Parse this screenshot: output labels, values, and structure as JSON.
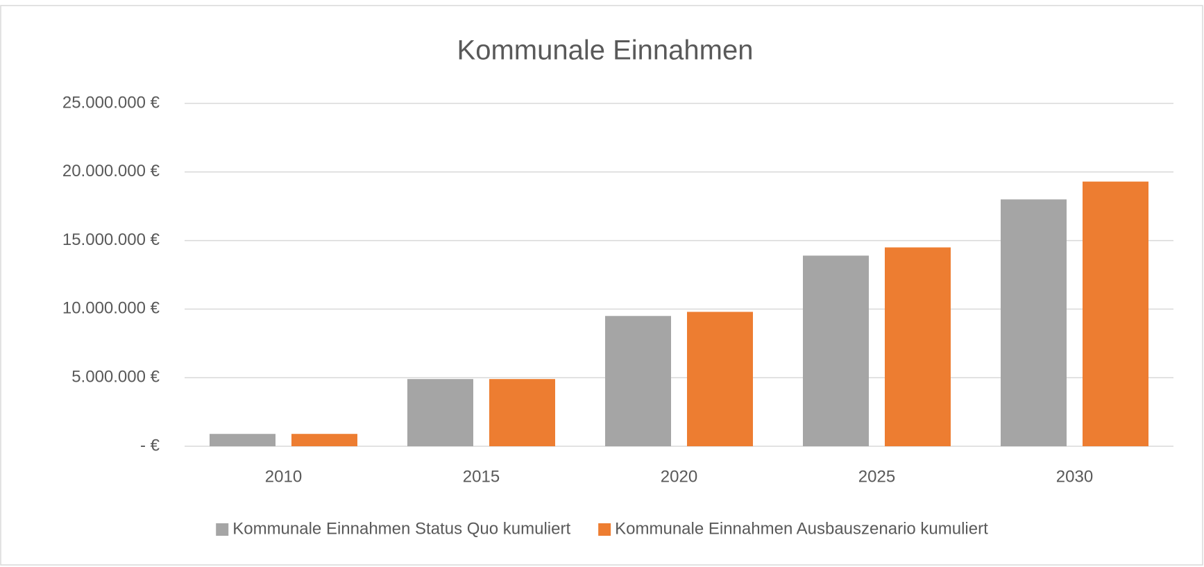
{
  "chart_data": {
    "type": "bar",
    "title": "Kommunale Einnahmen",
    "categories": [
      "2010",
      "2015",
      "2020",
      "2025",
      "2030"
    ],
    "series": [
      {
        "name": "Kommunale Einnahmen Status Quo kumuliert",
        "color": "#a5a5a5",
        "values": [
          900000,
          4900000,
          9500000,
          13900000,
          18000000
        ]
      },
      {
        "name": "Kommunale Einnahmen Ausbauszenario kumuliert",
        "color": "#ed7d31",
        "values": [
          900000,
          4900000,
          9800000,
          14500000,
          19300000
        ]
      }
    ],
    "ylim": [
      0,
      25000000
    ],
    "yticks": [
      {
        "value": 0,
        "label": "-   €"
      },
      {
        "value": 5000000,
        "label": "5.000.000 €"
      },
      {
        "value": 10000000,
        "label": "10.000.000 €"
      },
      {
        "value": 15000000,
        "label": "15.000.000 €"
      },
      {
        "value": 20000000,
        "label": "20.000.000 €"
      },
      {
        "value": 25000000,
        "label": "25.000.000 €"
      }
    ],
    "grid": true,
    "legend": "bottom"
  }
}
